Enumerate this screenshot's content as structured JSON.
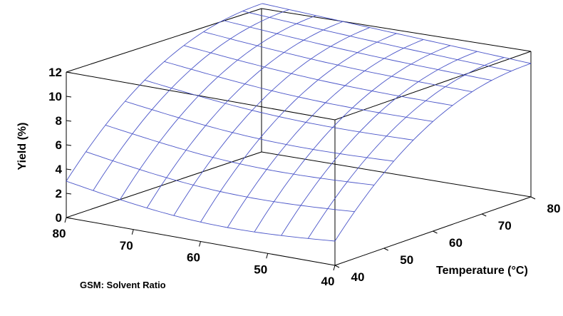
{
  "chart_data": {
    "type": "surface",
    "zlabel": "Yield (%)",
    "xlabel": "Temperature (°C)",
    "ylabel": "GSM: Solvent Ratio",
    "z_ticks": [
      "0",
      "2",
      "4",
      "6",
      "8",
      "10",
      "12"
    ],
    "x_ticks": [
      "40",
      "50",
      "60",
      "70",
      "80"
    ],
    "y_ticks": [
      "80",
      "70",
      "60",
      "50",
      "40"
    ],
    "zlim": [
      0,
      12
    ],
    "xlim": [
      40,
      80
    ],
    "ylim": [
      40,
      80
    ],
    "grid_size": 11,
    "corner_values": {
      "ratio80_temp40": 3.0,
      "ratio80_temp80": 12.0,
      "ratio40_temp40": 2.0,
      "ratio40_temp80": 11.0
    }
  }
}
